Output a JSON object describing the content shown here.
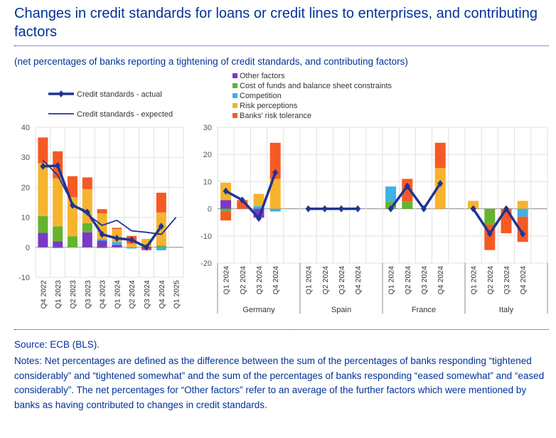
{
  "title": "Changes in credit standards for loans or credit lines to enterprises, and contributing factors",
  "subtitle": "(net percentages of banks reporting a tightening of credit standards, and contributing factors)",
  "source": "Source: ECB (BLS).",
  "notes": "Notes: Net percentages are defined as the difference between the sum of the percentages of banks responding “tightened considerably” and “tightened somewhat” and the sum of the percentages of banks responding “eased somewhat” and “eased considerably”. The net percentages for “Other factors” refer to an average of the further factors which were mentioned by banks as having contributed to changes in credit standards.",
  "chart_data": [
    {
      "type": "bar",
      "stacked": true,
      "ylim": [
        -10,
        40
      ],
      "yticks": [
        -10,
        0,
        10,
        20,
        30,
        40
      ],
      "grid": true,
      "categories": [
        "Q4 2022",
        "Q1 2023",
        "Q2 2023",
        "Q3 2023",
        "Q4 2023",
        "Q1 2024",
        "Q2 2024",
        "Q3 2024",
        "Q4 2024",
        "Q1 2025"
      ],
      "legend": [
        "Credit standards - actual",
        "Credit standards - expected"
      ],
      "series": [
        {
          "name": "Other factors",
          "color": "#7b39c7",
          "values": [
            4.8,
            2,
            0,
            5,
            2.2,
            0.8,
            0,
            -0.5,
            0,
            null
          ]
        },
        {
          "name": "Cost of funds and balance sheet constraints",
          "color": "#65b32e",
          "values": [
            5.6,
            5,
            3.7,
            3,
            -0.3,
            0,
            0,
            0.2,
            0.6,
            null
          ]
        },
        {
          "name": "Competition",
          "color": "#3fb1e5",
          "values": [
            0,
            -0.3,
            0,
            0,
            0.5,
            1,
            -0.4,
            0,
            -1,
            null
          ]
        },
        {
          "name": "Risk perceptions",
          "color": "#f6b42d",
          "values": [
            17.6,
            16,
            13,
            11.4,
            8.6,
            4.3,
            1.2,
            2.6,
            11,
            null
          ]
        },
        {
          "name": "Banks' risk tolerance",
          "color": "#f55a24",
          "values": [
            8.6,
            9,
            7,
            3.9,
            1.4,
            0.4,
            2.6,
            -0.5,
            6.6,
            null
          ]
        }
      ],
      "lines": [
        {
          "name": "Credit standards - actual",
          "color": "#1f3494",
          "values": [
            27,
            27.2,
            14,
            11.7,
            4.3,
            3,
            2.5,
            0,
            7,
            null
          ]
        },
        {
          "name": "Credit standards - expected",
          "color": "#1f3494",
          "values": [
            29,
            24,
            14.5,
            11,
            7.3,
            9,
            5.5,
            5,
            4.3,
            10
          ]
        }
      ]
    },
    {
      "type": "bar",
      "stacked": true,
      "ylim": [
        -20,
        30
      ],
      "yticks": [
        -20,
        -10,
        0,
        10,
        20,
        30
      ],
      "grid": true,
      "groups": [
        "Germany",
        "Spain",
        "France",
        "Italy"
      ],
      "categories": [
        "Q1 2024",
        "Q2 2024",
        "Q3 2024",
        "Q4 2024"
      ],
      "legend": [
        "Other factors",
        "Cost of funds and balance sheet constraints",
        "Competition",
        "Risk perceptions",
        "Banks’ risk tolerance"
      ],
      "series": [
        {
          "name": "Other factors",
          "color": "#7b39c7",
          "values": [
            [
              3.2,
              0,
              -3.3,
              0
            ],
            [
              0,
              0,
              0,
              0
            ],
            [
              0,
              0,
              0,
              0
            ],
            [
              0,
              0,
              0,
              0
            ]
          ]
        },
        {
          "name": "Cost of funds and balance sheet constraints",
          "color": "#65b32e",
          "values": [
            [
              -1,
              0,
              0,
              0
            ],
            [
              0,
              0,
              0,
              0
            ],
            [
              2.7,
              2.7,
              0,
              0
            ],
            [
              0,
              -5.8,
              0,
              0
            ]
          ]
        },
        {
          "name": "Competition",
          "color": "#3fb1e5",
          "values": [
            [
              0,
              0,
              1,
              -1
            ],
            [
              0,
              0,
              0,
              0
            ],
            [
              5.5,
              0,
              0,
              0
            ],
            [
              0,
              0,
              0,
              -2.9
            ]
          ]
        },
        {
          "name": "Risk perceptions",
          "color": "#f6b42d",
          "values": [
            [
              6.4,
              0,
              4.5,
              11
            ],
            [
              0,
              0,
              0,
              0
            ],
            [
              0,
              0,
              0,
              15
            ],
            [
              2.9,
              0,
              0,
              2.9
            ]
          ]
        },
        {
          "name": "Banks' risk tolerance",
          "color": "#f55a24",
          "values": [
            [
              -3.3,
              3.2,
              0,
              13.3
            ],
            [
              0,
              0,
              0,
              0
            ],
            [
              0,
              8.3,
              0,
              9.3
            ],
            [
              0,
              -9.4,
              -9,
              -9.3
            ]
          ]
        }
      ],
      "actual": [
        [
          6.5,
          3.2,
          -3.5,
          13.3
        ],
        [
          0,
          0,
          0,
          0
        ],
        [
          0,
          8.3,
          0,
          9.3
        ],
        [
          0,
          -9.2,
          0,
          -9.3
        ]
      ]
    }
  ]
}
